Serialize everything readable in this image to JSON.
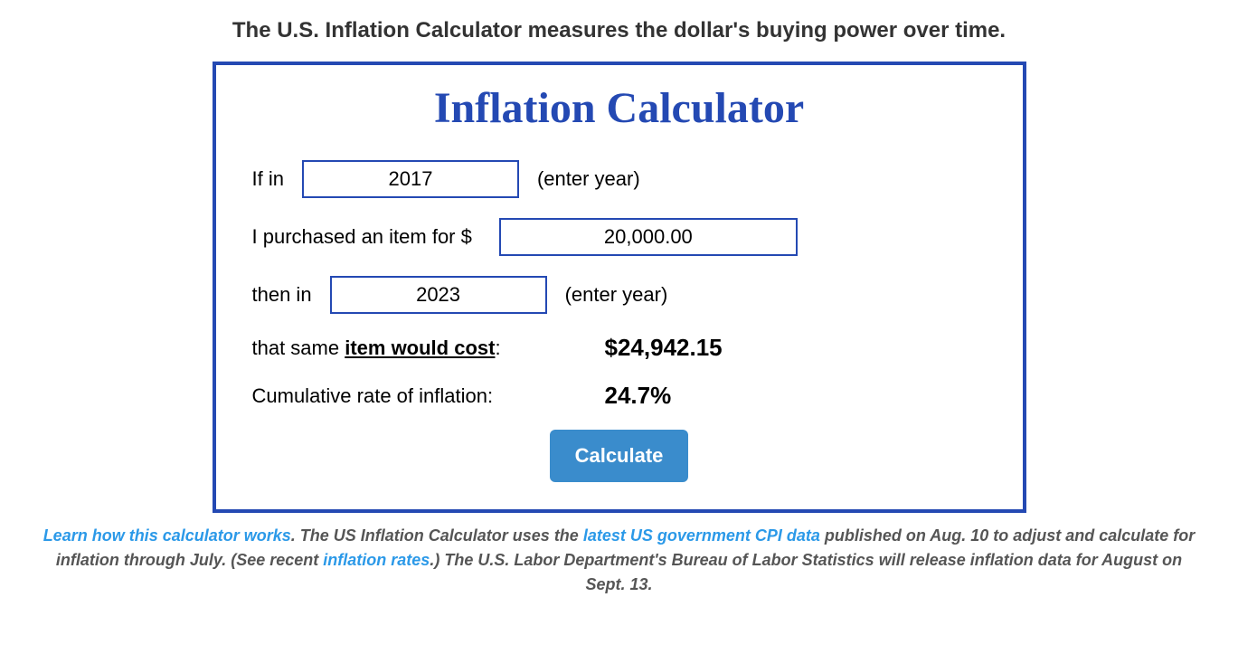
{
  "header": {
    "subtitle": "The U.S. Inflation Calculator measures the dollar's buying power over time."
  },
  "calculator": {
    "title": "Inflation Calculator",
    "labels": {
      "if_in": "If in",
      "enter_year": "(enter year)",
      "purchased": "I purchased an item for $",
      "then_in": "then in",
      "same_item_prefix": "that same ",
      "same_item_underline": "item would cost",
      "same_item_suffix": ":",
      "cumulative": "Cumulative rate of inflation:"
    },
    "inputs": {
      "start_year": "2017",
      "end_year": "2023",
      "amount": "20,000.00"
    },
    "results": {
      "amount": "$24,942.15",
      "rate": "24.7%"
    },
    "button": "Calculate"
  },
  "footer": {
    "link1": "Learn how this calculator works",
    "text1": ". The US Inflation Calculator uses the ",
    "link2": "latest US government CPI data",
    "text2": " published on Aug. 10 to adjust and calculate for inflation through July. (See recent ",
    "link3": "inflation rates",
    "text3": ".) The U.S. Labor Department's Bureau of Labor Statistics will release inflation data for August on Sept. 13."
  },
  "styling": {
    "border_color": "#2449b3",
    "title_color": "#2449b3",
    "button_bg": "#3a8ccc",
    "button_text_color": "#ffffff",
    "link_color": "#2b99e8",
    "body_text_color": "#333333",
    "footer_text_color": "#555555",
    "input_border_color": "#2449b3",
    "background_color": "#ffffff"
  }
}
